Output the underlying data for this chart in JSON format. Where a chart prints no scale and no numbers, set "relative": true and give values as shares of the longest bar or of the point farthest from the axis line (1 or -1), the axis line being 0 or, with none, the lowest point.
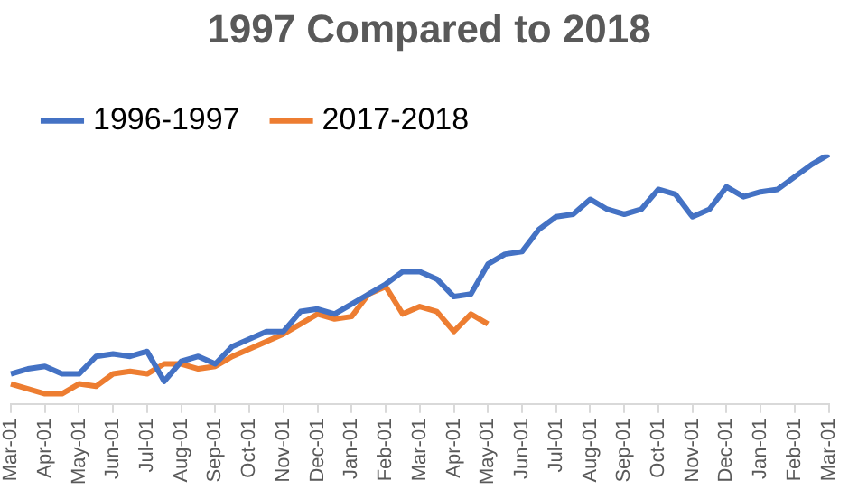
{
  "chart_data": {
    "type": "line",
    "title": "1997 Compared to 2018",
    "relative": true,
    "legend": "top left",
    "grid": false,
    "marker": "none",
    "line_style": "solid",
    "categories": [
      "Mar-01",
      null,
      "Apr-01",
      null,
      "May-01",
      null,
      "Jun-01",
      null,
      "Jul-01",
      null,
      "Aug-01",
      null,
      "Sep-01",
      null,
      "Oct-01",
      null,
      "Nov-01",
      null,
      "Dec-01",
      null,
      "Jan-01",
      null,
      "Feb-01",
      null,
      "Mar-01",
      null,
      "Apr-01",
      null,
      "May-01",
      null,
      "Jun-01",
      null,
      "Jul-01",
      null,
      "Aug-01",
      null,
      "Sep-01",
      null,
      "Oct-01",
      null,
      "Nov-01",
      null,
      "Dec-01",
      null,
      "Jan-01",
      null,
      "Feb-01",
      null,
      "Mar-01"
    ],
    "series": [
      {
        "name": "1996-1997",
        "color": "#4472c4",
        "values": [
          0.12,
          0.14,
          0.15,
          0.12,
          0.12,
          0.19,
          0.2,
          0.19,
          0.21,
          0.09,
          0.17,
          0.19,
          0.16,
          0.23,
          0.26,
          0.29,
          0.29,
          0.37,
          0.38,
          0.36,
          0.4,
          0.44,
          0.48,
          0.53,
          0.53,
          0.5,
          0.43,
          0.44,
          0.56,
          0.6,
          0.61,
          0.7,
          0.75,
          0.76,
          0.82,
          0.78,
          0.76,
          0.78,
          0.86,
          0.84,
          0.75,
          0.78,
          0.87,
          0.83,
          0.85,
          0.86,
          0.91,
          0.96,
          1
        ]
      },
      {
        "name": "2017-2018",
        "color": "#ed7d31",
        "values": [
          0.08,
          0.06,
          0.04,
          0.04,
          0.08,
          0.07,
          0.12,
          0.13,
          0.12,
          0.16,
          0.16,
          0.14,
          0.15,
          0.19,
          0.22,
          0.25,
          0.28,
          0.32,
          0.36,
          0.34,
          0.35,
          0.44,
          0.47,
          0.36,
          0.39,
          0.37,
          0.29,
          0.36,
          0.32,
          null,
          null,
          null,
          null,
          null,
          null,
          null,
          null,
          null,
          null,
          null,
          null,
          null,
          null,
          null,
          null,
          null,
          null,
          null,
          null
        ]
      }
    ]
  }
}
